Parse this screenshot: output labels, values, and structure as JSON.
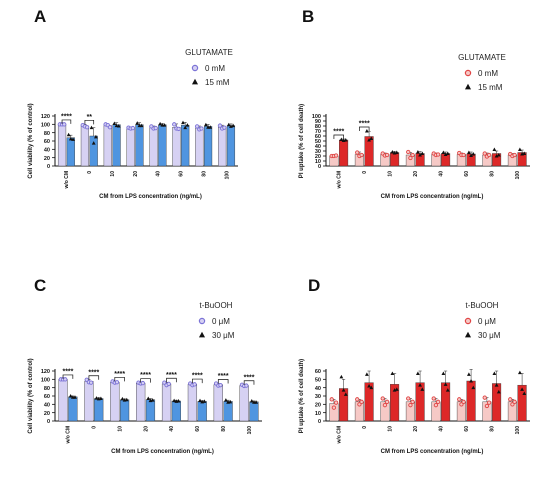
{
  "panels": [
    {
      "letter": "A"
    },
    {
      "letter": "B"
    },
    {
      "letter": "C"
    },
    {
      "letter": "D"
    }
  ],
  "chart_data": [
    {
      "panel": "A",
      "type": "bar",
      "xlabel": "CM from LPS concentration (ng/mL)",
      "ylabel": "Cell viability (% of control)",
      "ylim": [
        0,
        120
      ],
      "yticks": [
        0,
        20,
        40,
        60,
        80,
        100,
        120
      ],
      "categories": [
        "w/o CM",
        "0",
        "10",
        "20",
        "40",
        "60",
        "80",
        "100"
      ],
      "legend_title": "GLUTAMATE",
      "legend_position": "right",
      "series": [
        {
          "name": "0 mM",
          "marker": "circle",
          "bar_color": "#d6d1f3",
          "marker_color": "#7b72d6",
          "values": [
            100,
            96,
            97,
            91,
            92,
            93,
            91,
            93
          ],
          "errors": [
            1,
            4,
            4,
            3,
            4,
            8,
            5,
            5
          ],
          "points": [
            [
              100,
              100,
              100
            ],
            [
              98,
              95,
              93
            ],
            [
              100,
              98,
              93
            ],
            [
              92,
              90,
              91
            ],
            [
              95,
              90,
              91
            ],
            [
              100,
              90,
              89
            ],
            [
              95,
              88,
              90
            ],
            [
              97,
              90,
              92
            ]
          ]
        },
        {
          "name": "15 mM",
          "marker": "triangle",
          "bar_color": "#4f95e0",
          "marker_color": "#111111",
          "values": [
            68,
            72,
            99,
            99,
            99,
            98,
            95,
            97
          ],
          "errors": [
            6,
            20,
            5,
            5,
            3,
            7,
            5,
            4
          ],
          "points": [
            [
              75,
              65,
              64
            ],
            [
              92,
              55,
              70
            ],
            [
              102,
              97,
              96
            ],
            [
              103,
              97,
              97
            ],
            [
              101,
              98,
              98
            ],
            [
              104,
              92,
              98
            ],
            [
              99,
              93,
              93
            ],
            [
              99,
              95,
              97
            ]
          ]
        }
      ],
      "significance": [
        {
          "category": "w/o CM",
          "label": "****"
        },
        {
          "category": "0",
          "label": "**"
        }
      ]
    },
    {
      "panel": "B",
      "type": "bar",
      "xlabel": "CM from LPS concentration (ng/mL)",
      "ylabel": "PI uptake (% of cell death)",
      "ylim": [
        0,
        100
      ],
      "yticks": [
        0,
        10,
        20,
        30,
        40,
        50,
        60,
        70,
        80,
        90,
        100
      ],
      "categories": [
        "w/o CM",
        "0",
        "10",
        "20",
        "40",
        "60",
        "80",
        "100"
      ],
      "legend_title": "GLUTAMATE",
      "legend_position": "right",
      "series": [
        {
          "name": "0 mM",
          "marker": "circle",
          "bar_color": "#f6c9c6",
          "marker_color": "#e04545",
          "values": [
            20,
            23,
            23,
            22,
            23,
            23,
            22,
            22
          ],
          "errors": [
            1,
            5,
            3,
            5,
            3,
            3,
            4,
            3
          ],
          "points": [
            [
              20,
              20,
              21
            ],
            [
              27,
              20,
              22
            ],
            [
              25,
              21,
              22
            ],
            [
              28,
              16,
              22
            ],
            [
              25,
              22,
              23
            ],
            [
              26,
              22,
              22
            ],
            [
              25,
              19,
              22
            ],
            [
              24,
              20,
              22
            ]
          ]
        },
        {
          "name": "15 mM",
          "marker": "triangle",
          "bar_color": "#dd2828",
          "marker_color": "#111111",
          "values": [
            52,
            59,
            27,
            25,
            25,
            24,
            25,
            27
          ],
          "errors": [
            2,
            10,
            2,
            4,
            3,
            4,
            5,
            5
          ],
          "points": [
            [
              53,
              51,
              52
            ],
            [
              70,
              52,
              55
            ],
            [
              28,
              26,
              27
            ],
            [
              28,
              22,
              25
            ],
            [
              27,
              23,
              25
            ],
            [
              27,
              21,
              24
            ],
            [
              33,
              20,
              22
            ],
            [
              33,
              24,
              25
            ]
          ]
        }
      ],
      "significance": [
        {
          "category": "w/o CM",
          "label": "****"
        },
        {
          "category": "0",
          "label": "****"
        }
      ]
    },
    {
      "panel": "C",
      "type": "bar",
      "xlabel": "CM from LPS concentration (ng/mL)",
      "ylabel": "Cell viability (% of control)",
      "ylim": [
        0,
        120
      ],
      "yticks": [
        0,
        20,
        40,
        60,
        80,
        100,
        120
      ],
      "categories": [
        "w/o CM",
        "0",
        "10",
        "20",
        "40",
        "60",
        "80",
        "100"
      ],
      "legend_title": "t-BuOOH",
      "legend_position": "right",
      "series": [
        {
          "name": "0 μM",
          "marker": "circle",
          "bar_color": "#d6d1f3",
          "marker_color": "#7b72d6",
          "values": [
            100,
            95,
            93,
            91,
            89,
            88,
            87,
            85
          ],
          "errors": [
            1,
            4,
            2,
            1,
            4,
            3,
            3,
            2
          ],
          "points": [
            [
              100,
              100,
              100
            ],
            [
              99,
              93,
              92
            ],
            [
              95,
              92,
              93
            ],
            [
              92,
              90,
              91
            ],
            [
              92,
              86,
              89
            ],
            [
              90,
              86,
              88
            ],
            [
              90,
              85,
              86
            ],
            [
              87,
              84,
              85
            ]
          ]
        },
        {
          "name": "30 μM",
          "marker": "triangle",
          "bar_color": "#4f95e0",
          "marker_color": "#111111",
          "values": [
            58,
            54,
            51,
            51,
            48,
            47,
            47,
            46
          ],
          "errors": [
            2,
            2,
            2,
            3,
            2,
            2,
            3,
            2
          ],
          "points": [
            [
              60,
              57,
              57
            ],
            [
              55,
              53,
              54
            ],
            [
              53,
              50,
              51
            ],
            [
              54,
              49,
              50
            ],
            [
              49,
              47,
              48
            ],
            [
              49,
              46,
              47
            ],
            [
              50,
              45,
              46
            ],
            [
              48,
              45,
              45
            ]
          ]
        }
      ],
      "significance": [
        {
          "category": "w/o CM",
          "label": "****"
        },
        {
          "category": "0",
          "label": "****"
        },
        {
          "category": "10",
          "label": "****"
        },
        {
          "category": "20",
          "label": "****"
        },
        {
          "category": "40",
          "label": "****"
        },
        {
          "category": "60",
          "label": "****"
        },
        {
          "category": "80",
          "label": "****"
        },
        {
          "category": "100",
          "label": "****"
        }
      ]
    },
    {
      "panel": "D",
      "type": "bar",
      "xlabel": "CM from LPS concentration (ng/mL)",
      "ylabel": "PI uptake (% of cell death)",
      "ylim": [
        0,
        60
      ],
      "yticks": [
        0,
        10,
        20,
        30,
        40,
        50,
        60
      ],
      "categories": [
        "w/o CM",
        "0",
        "10",
        "20",
        "40",
        "60",
        "80",
        "100"
      ],
      "legend_title": "t-BuOOH",
      "legend_position": "right",
      "series": [
        {
          "name": "0 μM",
          "marker": "circle",
          "bar_color": "#f6c9c6",
          "marker_color": "#e04545",
          "values": [
            21,
            23,
            23,
            23,
            23,
            23,
            23,
            23
          ],
          "errors": [
            5,
            3,
            4,
            4,
            4,
            3,
            5,
            3
          ],
          "points": [
            [
              26,
              16,
              22
            ],
            [
              26,
              20,
              23
            ],
            [
              27,
              19,
              23
            ],
            [
              27,
              19,
              23
            ],
            [
              27,
              19,
              23
            ],
            [
              26,
              20,
              23
            ],
            [
              28,
              18,
              22
            ],
            [
              26,
              20,
              23
            ]
          ]
        },
        {
          "name": "30 μM",
          "marker": "triangle",
          "bar_color": "#dd2828",
          "marker_color": "#111111",
          "values": [
            39,
            46,
            44,
            46,
            46,
            48,
            45,
            43
          ],
          "errors": [
            11,
            14,
            13,
            14,
            14,
            14,
            15,
            14
          ],
          "points": [
            [
              53,
              37,
              32
            ],
            [
              56,
              42,
              40
            ],
            [
              57,
              37,
              38
            ],
            [
              57,
              43,
              38
            ],
            [
              57,
              44,
              37
            ],
            [
              56,
              48,
              40
            ],
            [
              57,
              43,
              35
            ],
            [
              58,
              38,
              33
            ]
          ]
        }
      ],
      "significance": []
    }
  ]
}
